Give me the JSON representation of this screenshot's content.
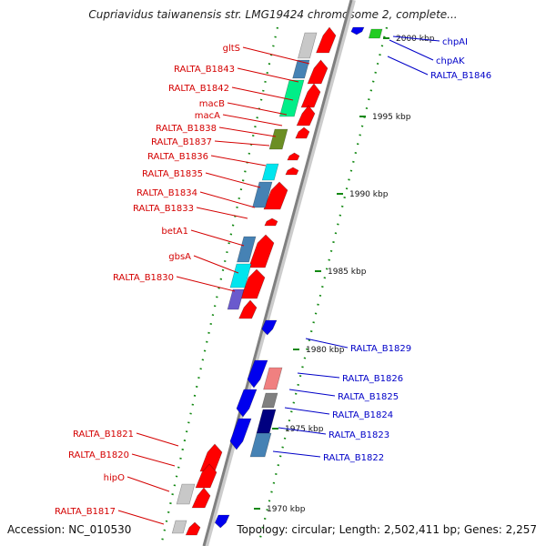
{
  "title": "Cupriavidus taiwanensis str. LMG19424 chromosome 2, complete...",
  "footer": {
    "accession": "Accession: NC_010530",
    "topology": "Topology: circular; Length: 2,502,411 bp; Genes: 2,257"
  },
  "colors": {
    "forward_label": "#d40000",
    "reverse_label": "#0000c8",
    "backbone": "#808080",
    "tick": "#118811"
  },
  "scale_labels": [
    "2000 kbp",
    "1995 kbp",
    "1990 kbp",
    "1985 kbp",
    "1980 kbp",
    "1975 kbp",
    "1970 kbp"
  ],
  "forward_genes": [
    {
      "name": "gltS"
    },
    {
      "name": "RALTA_B1843"
    },
    {
      "name": "RALTA_B1842"
    },
    {
      "name": "macB"
    },
    {
      "name": "macA"
    },
    {
      "name": "RALTA_B1838"
    },
    {
      "name": "RALTA_B1837"
    },
    {
      "name": "RALTA_B1836"
    },
    {
      "name": "RALTA_B1835"
    },
    {
      "name": "RALTA_B1834"
    },
    {
      "name": "RALTA_B1833"
    },
    {
      "name": "betA1"
    },
    {
      "name": "gbsA"
    },
    {
      "name": "RALTA_B1830"
    },
    {
      "name": "RALTA_B1821"
    },
    {
      "name": "RALTA_B1820"
    },
    {
      "name": "hipO"
    },
    {
      "name": "RALTA_B1817"
    }
  ],
  "reverse_genes": [
    {
      "name": "chpAI"
    },
    {
      "name": "chpAK"
    },
    {
      "name": "RALTA_B1846"
    },
    {
      "name": "RALTA_B1829"
    },
    {
      "name": "RALTA_B1826"
    },
    {
      "name": "RALTA_B1825"
    },
    {
      "name": "RALTA_B1824"
    },
    {
      "name": "RALTA_B1823"
    },
    {
      "name": "RALTA_B1822"
    }
  ]
}
